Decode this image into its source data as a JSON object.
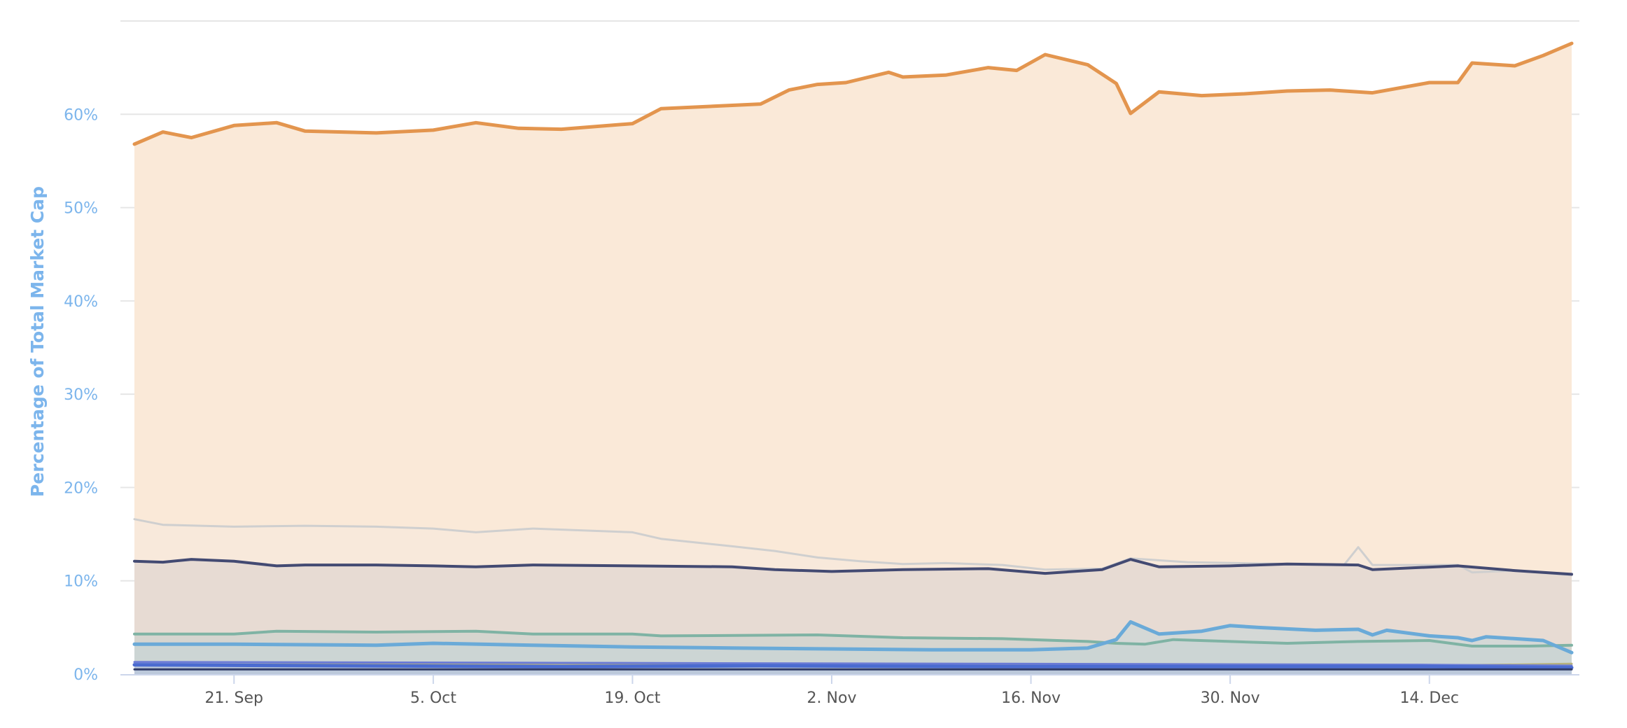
{
  "chart_data": {
    "type": "area",
    "title": "",
    "xlabel": "",
    "ylabel": "Percentage of Total Market Cap",
    "ylim": [
      0,
      70
    ],
    "y_ticks": [
      "0%",
      "10%",
      "20%",
      "30%",
      "40%",
      "50%",
      "60%"
    ],
    "y_tick_values": [
      0,
      10,
      20,
      30,
      40,
      50,
      60
    ],
    "x_ticks": [
      "21. Sep",
      "5. Oct",
      "19. Oct",
      "2. Nov",
      "16. Nov",
      "30. Nov",
      "14. Dec"
    ],
    "x_start": "2020-09-14",
    "x_end": "2020-12-24",
    "x_tick_dates": [
      "2020-09-21",
      "2020-10-05",
      "2020-10-19",
      "2020-11-02",
      "2020-11-16",
      "2020-11-30",
      "2020-12-14"
    ],
    "stacked": false,
    "grid": true,
    "legend": "none",
    "series": [
      {
        "color": "#e3954e",
        "fill": "#fae9d8",
        "width": 5,
        "points": [
          [
            "2020-09-14",
            56.8
          ],
          [
            "2020-09-16",
            58.1
          ],
          [
            "2020-09-18",
            57.5
          ],
          [
            "2020-09-21",
            58.8
          ],
          [
            "2020-09-24",
            59.1
          ],
          [
            "2020-09-26",
            58.2
          ],
          [
            "2020-10-01",
            58.0
          ],
          [
            "2020-10-05",
            58.3
          ],
          [
            "2020-10-08",
            59.1
          ],
          [
            "2020-10-11",
            58.5
          ],
          [
            "2020-10-14",
            58.4
          ],
          [
            "2020-10-19",
            59.0
          ],
          [
            "2020-10-21",
            60.6
          ],
          [
            "2020-10-28",
            61.1
          ],
          [
            "2020-10-30",
            62.6
          ],
          [
            "2020-11-01",
            63.2
          ],
          [
            "2020-11-03",
            63.4
          ],
          [
            "2020-11-06",
            64.5
          ],
          [
            "2020-11-07",
            64.0
          ],
          [
            "2020-11-10",
            64.2
          ],
          [
            "2020-11-13",
            65.0
          ],
          [
            "2020-11-15",
            64.7
          ],
          [
            "2020-11-17",
            66.4
          ],
          [
            "2020-11-20",
            65.3
          ],
          [
            "2020-11-22",
            63.3
          ],
          [
            "2020-11-23",
            60.1
          ],
          [
            "2020-11-25",
            62.4
          ],
          [
            "2020-11-28",
            62.0
          ],
          [
            "2020-12-01",
            62.2
          ],
          [
            "2020-12-04",
            62.5
          ],
          [
            "2020-12-07",
            62.6
          ],
          [
            "2020-12-10",
            62.3
          ],
          [
            "2020-12-14",
            63.4
          ],
          [
            "2020-12-16",
            63.4
          ],
          [
            "2020-12-17",
            65.5
          ],
          [
            "2020-12-20",
            65.2
          ],
          [
            "2020-12-22",
            66.3
          ],
          [
            "2020-12-24",
            67.6
          ]
        ]
      },
      {
        "color": "#cfcfcf",
        "fill": "#f5e9de",
        "width": 3,
        "points": [
          [
            "2020-09-14",
            16.6
          ],
          [
            "2020-09-16",
            16.0
          ],
          [
            "2020-09-21",
            15.8
          ],
          [
            "2020-09-26",
            15.9
          ],
          [
            "2020-10-01",
            15.8
          ],
          [
            "2020-10-05",
            15.6
          ],
          [
            "2020-10-08",
            15.2
          ],
          [
            "2020-10-12",
            15.6
          ],
          [
            "2020-10-19",
            15.2
          ],
          [
            "2020-10-21",
            14.5
          ],
          [
            "2020-10-26",
            13.7
          ],
          [
            "2020-10-29",
            13.2
          ],
          [
            "2020-11-01",
            12.5
          ],
          [
            "2020-11-04",
            12.1
          ],
          [
            "2020-11-07",
            11.8
          ],
          [
            "2020-11-10",
            11.9
          ],
          [
            "2020-11-14",
            11.7
          ],
          [
            "2020-11-17",
            11.2
          ],
          [
            "2020-11-21",
            11.3
          ],
          [
            "2020-11-23",
            12.4
          ],
          [
            "2020-11-27",
            12.0
          ],
          [
            "2020-12-04",
            11.8
          ],
          [
            "2020-12-08",
            11.7
          ],
          [
            "2020-12-09",
            13.6
          ],
          [
            "2020-12-10",
            11.7
          ],
          [
            "2020-12-16",
            11.7
          ],
          [
            "2020-12-17",
            10.9
          ],
          [
            "2020-12-20",
            11.1
          ],
          [
            "2020-12-24",
            10.6
          ]
        ]
      },
      {
        "color": "#434a72",
        "fill": "#d9d0cc",
        "width": 4,
        "points": [
          [
            "2020-09-14",
            12.1
          ],
          [
            "2020-09-16",
            12.0
          ],
          [
            "2020-09-18",
            12.3
          ],
          [
            "2020-09-21",
            12.1
          ],
          [
            "2020-09-24",
            11.6
          ],
          [
            "2020-09-26",
            11.7
          ],
          [
            "2020-10-01",
            11.7
          ],
          [
            "2020-10-05",
            11.6
          ],
          [
            "2020-10-08",
            11.5
          ],
          [
            "2020-10-12",
            11.7
          ],
          [
            "2020-10-19",
            11.6
          ],
          [
            "2020-10-26",
            11.5
          ],
          [
            "2020-10-29",
            11.2
          ],
          [
            "2020-11-02",
            11.0
          ],
          [
            "2020-11-07",
            11.2
          ],
          [
            "2020-11-13",
            11.3
          ],
          [
            "2020-11-17",
            10.8
          ],
          [
            "2020-11-21",
            11.2
          ],
          [
            "2020-11-23",
            12.3
          ],
          [
            "2020-11-25",
            11.5
          ],
          [
            "2020-11-30",
            11.6
          ],
          [
            "2020-12-04",
            11.8
          ],
          [
            "2020-12-09",
            11.7
          ],
          [
            "2020-12-10",
            11.2
          ],
          [
            "2020-12-16",
            11.6
          ],
          [
            "2020-12-20",
            11.1
          ],
          [
            "2020-12-24",
            10.7
          ]
        ]
      },
      {
        "color": "#7fb3a4",
        "fill": "#c9d0cc",
        "width": 4,
        "points": [
          [
            "2020-09-14",
            4.3
          ],
          [
            "2020-09-21",
            4.3
          ],
          [
            "2020-09-24",
            4.6
          ],
          [
            "2020-10-01",
            4.5
          ],
          [
            "2020-10-08",
            4.6
          ],
          [
            "2020-10-12",
            4.3
          ],
          [
            "2020-10-19",
            4.3
          ],
          [
            "2020-10-21",
            4.1
          ],
          [
            "2020-11-01",
            4.2
          ],
          [
            "2020-11-07",
            3.9
          ],
          [
            "2020-11-14",
            3.8
          ],
          [
            "2020-11-20",
            3.5
          ],
          [
            "2020-11-22",
            3.3
          ],
          [
            "2020-11-24",
            3.2
          ],
          [
            "2020-11-26",
            3.7
          ],
          [
            "2020-11-30",
            3.5
          ],
          [
            "2020-12-04",
            3.3
          ],
          [
            "2020-12-09",
            3.5
          ],
          [
            "2020-12-14",
            3.6
          ],
          [
            "2020-12-17",
            3.0
          ],
          [
            "2020-12-21",
            3.0
          ],
          [
            "2020-12-24",
            3.1
          ]
        ]
      },
      {
        "color": "#6aaad8",
        "fill": "#c4d6d9",
        "width": 5,
        "points": [
          [
            "2020-09-14",
            3.2
          ],
          [
            "2020-09-21",
            3.2
          ],
          [
            "2020-10-01",
            3.1
          ],
          [
            "2020-10-05",
            3.3
          ],
          [
            "2020-10-12",
            3.1
          ],
          [
            "2020-10-19",
            2.9
          ],
          [
            "2020-10-26",
            2.8
          ],
          [
            "2020-11-02",
            2.7
          ],
          [
            "2020-11-09",
            2.6
          ],
          [
            "2020-11-16",
            2.6
          ],
          [
            "2020-11-20",
            2.8
          ],
          [
            "2020-11-22",
            3.7
          ],
          [
            "2020-11-23",
            5.6
          ],
          [
            "2020-11-25",
            4.3
          ],
          [
            "2020-11-28",
            4.6
          ],
          [
            "2020-11-30",
            5.2
          ],
          [
            "2020-12-02",
            5.0
          ],
          [
            "2020-12-06",
            4.7
          ],
          [
            "2020-12-09",
            4.8
          ],
          [
            "2020-12-10",
            4.2
          ],
          [
            "2020-12-11",
            4.7
          ],
          [
            "2020-12-14",
            4.1
          ],
          [
            "2020-12-16",
            3.9
          ],
          [
            "2020-12-17",
            3.6
          ],
          [
            "2020-12-18",
            4.0
          ],
          [
            "2020-12-22",
            3.6
          ],
          [
            "2020-12-24",
            2.3
          ]
        ]
      },
      {
        "color": "#b7b27e",
        "fill": "none",
        "width": 3,
        "points": [
          [
            "2020-09-14",
            1.0
          ],
          [
            "2020-10-14",
            1.1
          ],
          [
            "2020-11-14",
            0.9
          ],
          [
            "2020-12-14",
            0.9
          ],
          [
            "2020-12-24",
            1.1
          ]
        ]
      },
      {
        "color": "#6b7bd6",
        "fill": "none",
        "width": 3,
        "points": [
          [
            "2020-09-14",
            1.3
          ],
          [
            "2020-10-14",
            1.2
          ],
          [
            "2020-11-14",
            1.1
          ],
          [
            "2020-12-14",
            1.0
          ],
          [
            "2020-12-24",
            0.9
          ]
        ]
      },
      {
        "color": "#4a6bd0",
        "fill": "#aebfe0",
        "width": 5,
        "points": [
          [
            "2020-09-14",
            1.0
          ],
          [
            "2020-09-28",
            0.9
          ],
          [
            "2020-10-14",
            0.8
          ],
          [
            "2020-10-28",
            0.9
          ],
          [
            "2020-11-14",
            0.8
          ],
          [
            "2020-11-28",
            0.8
          ],
          [
            "2020-12-14",
            0.8
          ],
          [
            "2020-12-24",
            0.7
          ]
        ]
      },
      {
        "color": "#2f3a66",
        "fill": "none",
        "width": 3,
        "points": [
          [
            "2020-09-14",
            0.5
          ],
          [
            "2020-10-14",
            0.5
          ],
          [
            "2020-11-14",
            0.5
          ],
          [
            "2020-12-14",
            0.5
          ],
          [
            "2020-12-24",
            0.5
          ]
        ]
      }
    ]
  }
}
